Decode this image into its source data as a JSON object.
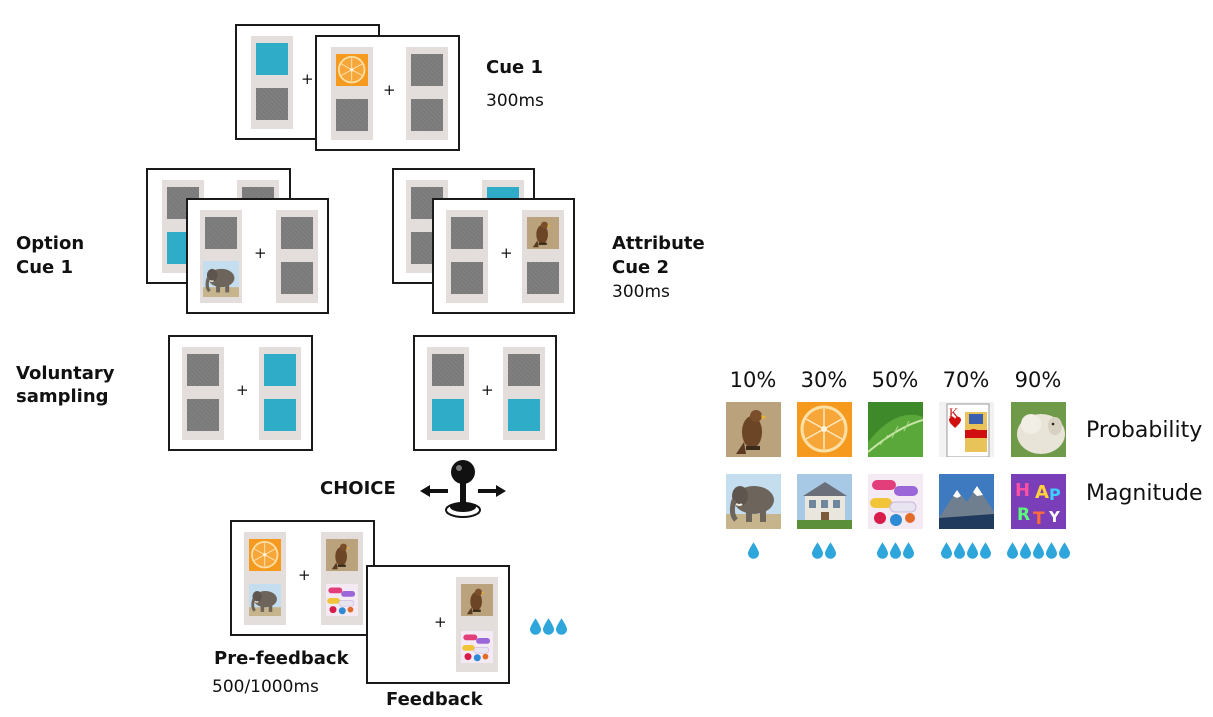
{
  "stages": {
    "cue1": {
      "label": "Cue 1",
      "time": "300ms"
    },
    "option_cue": {
      "label_line1": "Option",
      "label_line2": "Cue 1"
    },
    "attribute_cue": {
      "label_line1": "Attribute",
      "label_line2": "Cue 2",
      "time": "300ms"
    },
    "voluntary": {
      "label_line1": "Voluntary",
      "label_line2": "sampling"
    },
    "choice": {
      "label": "CHOICE"
    },
    "prefeedback": {
      "label": "Pre-feedback",
      "time": "500/1000ms"
    },
    "feedback": {
      "label": "Feedback"
    }
  },
  "fixation": "+",
  "legend": {
    "probability_label": "Probability",
    "magnitude_label": "Magnitude",
    "columns": [
      {
        "pct": "10%",
        "prob_icon": "hawk-icon",
        "mag_icon": "elephant-icon",
        "drops": 1
      },
      {
        "pct": "30%",
        "prob_icon": "orange-icon",
        "mag_icon": "house-icon",
        "drops": 2
      },
      {
        "pct": "50%",
        "prob_icon": "leaf-icon",
        "mag_icon": "pills-icon",
        "drops": 3
      },
      {
        "pct": "70%",
        "prob_icon": "king-of-hearts-card-icon",
        "mag_icon": "mountain-icon",
        "drops": 4
      },
      {
        "pct": "90%",
        "prob_icon": "sheep-icon",
        "mag_icon": "birthday-letters-icon",
        "drops": 5
      }
    ]
  },
  "colors": {
    "cue": "#2eacc8",
    "slot": "#7a7a7a",
    "frame": "#e3dedb",
    "drop": "#2ea6dc"
  },
  "feedback_reward_drops": 3
}
